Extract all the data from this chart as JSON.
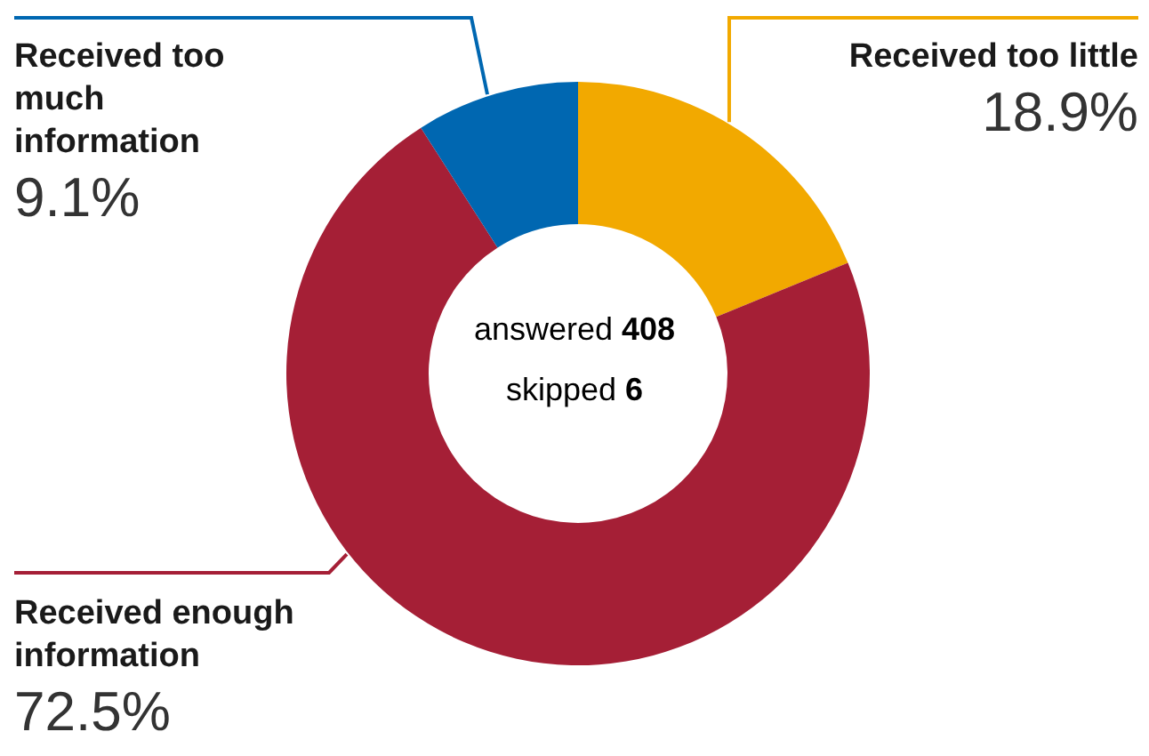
{
  "chart_data": {
    "type": "donut",
    "categories": [
      "Received too little",
      "Received enough information",
      "Received too much information"
    ],
    "values": [
      18.9,
      72.5,
      9.1
    ],
    "value_labels": [
      "18.9%",
      "72.5%",
      "9.1%"
    ],
    "colors": [
      "#f2a900",
      "#a51f36",
      "#0067b1"
    ],
    "annotations": [
      "answered 408",
      "skipped 6"
    ],
    "legend": false
  }
}
